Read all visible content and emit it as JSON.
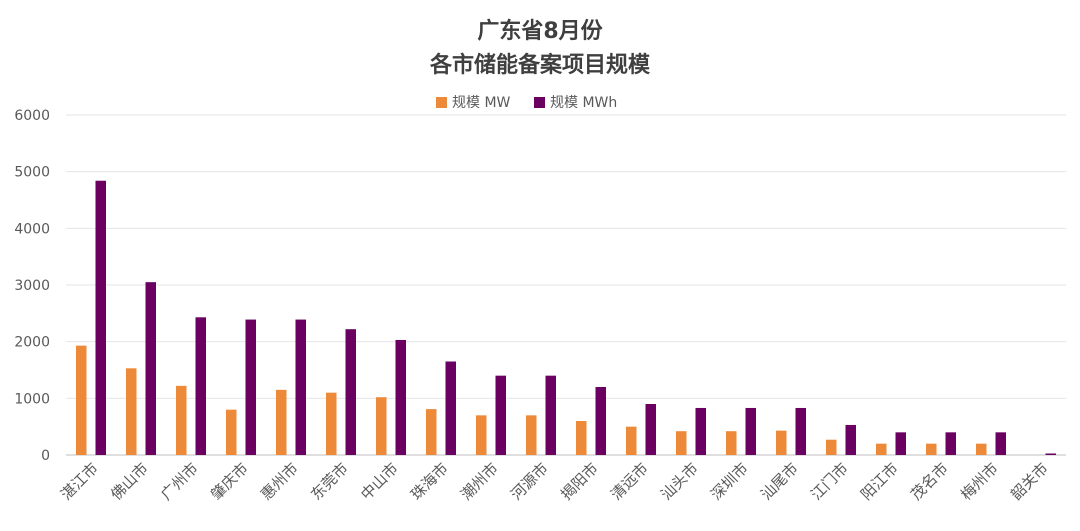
{
  "chart_data": {
    "type": "bar",
    "title_line1": "广东省8月份",
    "title_line2": "各市储能备案项目规模",
    "categories": [
      "湛江市",
      "佛山市",
      "广州市",
      "肇庆市",
      "惠州市",
      "东莞市",
      "中山市",
      "珠海市",
      "潮州市",
      "河源市",
      "揭阳市",
      "清远市",
      "汕头市",
      "深圳市",
      "汕尾市",
      "江门市",
      "阳江市",
      "茂名市",
      "梅州市",
      "韶关市"
    ],
    "series": [
      {
        "name": "规模 MW",
        "color": "#ed8a3a",
        "values": [
          1930,
          1530,
          1220,
          800,
          1150,
          1100,
          1020,
          810,
          700,
          700,
          600,
          500,
          420,
          420,
          430,
          270,
          200,
          200,
          200,
          0
        ]
      },
      {
        "name": "规模 MWh",
        "color": "#6a0060",
        "values": [
          4840,
          3050,
          2430,
          2390,
          2390,
          2220,
          2030,
          1650,
          1400,
          1400,
          1200,
          900,
          830,
          830,
          830,
          530,
          400,
          400,
          400,
          20
        ]
      }
    ],
    "ylim": [
      0,
      6000
    ],
    "yticks": [
      0,
      1000,
      2000,
      3000,
      4000,
      5000,
      6000
    ],
    "grid": true,
    "legend_position": "top-center"
  }
}
